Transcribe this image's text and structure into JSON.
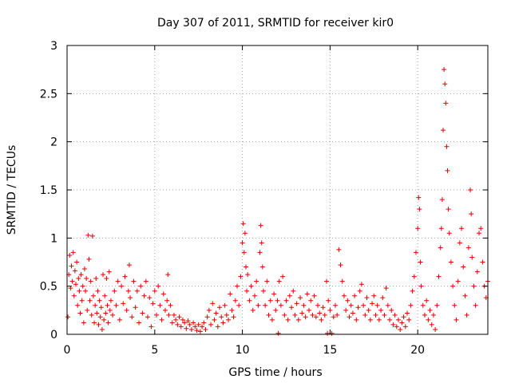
{
  "chart_data": {
    "type": "scatter",
    "title": "Day 307 of 2011, SRMTID for receiver kir0",
    "xlabel": "GPS time / hours",
    "ylabel": "SRMTID / TECUs",
    "xlim": [
      0,
      24
    ],
    "ylim": [
      0,
      3
    ],
    "xticks": [
      "0",
      "5",
      "10",
      "15",
      "20"
    ],
    "yticks": [
      "0",
      "0.5",
      "1",
      "1.5",
      "2",
      "2.5",
      "3"
    ],
    "grid": true,
    "marker": "+",
    "series": [
      {
        "color": "#e00000",
        "points": [
          [
            0.05,
            0.18
          ],
          [
            0.1,
            0.62
          ],
          [
            0.15,
            0.82
          ],
          [
            0.2,
            0.48
          ],
          [
            0.25,
            0.71
          ],
          [
            0.3,
            0.55
          ],
          [
            0.35,
            0.85
          ],
          [
            0.4,
            0.4
          ],
          [
            0.45,
            0.66
          ],
          [
            0.5,
            0.52
          ],
          [
            0.55,
            0.75
          ],
          [
            0.6,
            0.3
          ],
          [
            0.65,
            0.58
          ],
          [
            0.7,
            0.45
          ],
          [
            0.75,
            0.22
          ],
          [
            0.8,
            0.62
          ],
          [
            0.85,
            0.35
          ],
          [
            0.9,
            0.5
          ],
          [
            0.95,
            0.12
          ],
          [
            1.0,
            0.68
          ],
          [
            1.05,
            0.45
          ],
          [
            1.1,
            0.58
          ],
          [
            1.15,
            0.25
          ],
          [
            1.2,
            1.03
          ],
          [
            1.25,
            0.78
          ],
          [
            1.3,
            0.35
          ],
          [
            1.35,
            0.55
          ],
          [
            1.4,
            0.2
          ],
          [
            1.45,
            1.02
          ],
          [
            1.5,
            0.4
          ],
          [
            1.55,
            0.12
          ],
          [
            1.6,
            0.3
          ],
          [
            1.65,
            0.58
          ],
          [
            1.7,
            0.22
          ],
          [
            1.75,
            0.45
          ],
          [
            1.8,
            0.1
          ],
          [
            1.85,
            0.35
          ],
          [
            1.9,
            0.18
          ],
          [
            1.95,
            0.28
          ],
          [
            2.0,
            0.05
          ],
          [
            2.05,
            0.62
          ],
          [
            2.1,
            0.15
          ],
          [
            2.15,
            0.4
          ],
          [
            2.2,
            0.22
          ],
          [
            2.25,
            0.58
          ],
          [
            2.3,
            0.3
          ],
          [
            2.35,
            0.12
          ],
          [
            2.4,
            0.65
          ],
          [
            2.45,
            0.25
          ],
          [
            2.5,
            0.35
          ],
          [
            2.6,
            0.2
          ],
          [
            2.7,
            0.45
          ],
          [
            2.8,
            0.3
          ],
          [
            2.9,
            0.55
          ],
          [
            3.0,
            0.15
          ],
          [
            3.1,
            0.5
          ],
          [
            3.2,
            0.32
          ],
          [
            3.3,
            0.6
          ],
          [
            3.4,
            0.25
          ],
          [
            3.5,
            0.45
          ],
          [
            3.55,
            0.72
          ],
          [
            3.6,
            0.38
          ],
          [
            3.7,
            0.18
          ],
          [
            3.8,
            0.55
          ],
          [
            3.9,
            0.28
          ],
          [
            4.0,
            0.45
          ],
          [
            4.1,
            0.12
          ],
          [
            4.2,
            0.5
          ],
          [
            4.3,
            0.22
          ],
          [
            4.4,
            0.4
          ],
          [
            4.5,
            0.55
          ],
          [
            4.6,
            0.18
          ],
          [
            4.7,
            0.38
          ],
          [
            4.8,
            0.08
          ],
          [
            4.9,
            0.32
          ],
          [
            5.0,
            0.45
          ],
          [
            5.1,
            0.2
          ],
          [
            5.2,
            0.5
          ],
          [
            5.3,
            0.3
          ],
          [
            5.4,
            0.15
          ],
          [
            5.5,
            0.42
          ],
          [
            5.6,
            0.25
          ],
          [
            5.7,
            0.35
          ],
          [
            5.75,
            0.62
          ],
          [
            5.8,
            0.2
          ],
          [
            5.9,
            0.3
          ],
          [
            6.0,
            0.12
          ],
          [
            6.1,
            0.2
          ],
          [
            6.2,
            0.15
          ],
          [
            6.3,
            0.1
          ],
          [
            6.4,
            0.18
          ],
          [
            6.5,
            0.08
          ],
          [
            6.6,
            0.15
          ],
          [
            6.7,
            0.12
          ],
          [
            6.8,
            0.06
          ],
          [
            6.9,
            0.14
          ],
          [
            7.0,
            0.1
          ],
          [
            7.1,
            0.05
          ],
          [
            7.2,
            0.12
          ],
          [
            7.3,
            0.08
          ],
          [
            7.4,
            0.04
          ],
          [
            7.5,
            0.1
          ],
          [
            7.6,
            0.03
          ],
          [
            7.7,
            0.08
          ],
          [
            7.8,
            0.12
          ],
          [
            7.9,
            0.05
          ],
          [
            8.0,
            0.18
          ],
          [
            8.1,
            0.25
          ],
          [
            8.2,
            0.1
          ],
          [
            8.3,
            0.32
          ],
          [
            8.4,
            0.15
          ],
          [
            8.5,
            0.22
          ],
          [
            8.6,
            0.08
          ],
          [
            8.7,
            0.28
          ],
          [
            8.8,
            0.18
          ],
          [
            8.9,
            0.12
          ],
          [
            9.0,
            0.3
          ],
          [
            9.1,
            0.2
          ],
          [
            9.2,
            0.15
          ],
          [
            9.3,
            0.42
          ],
          [
            9.4,
            0.25
          ],
          [
            9.5,
            0.18
          ],
          [
            9.6,
            0.35
          ],
          [
            9.7,
            0.5
          ],
          [
            9.8,
            0.3
          ],
          [
            9.9,
            0.6
          ],
          [
            10.0,
            0.95
          ],
          [
            10.05,
            1.15
          ],
          [
            10.1,
            0.85
          ],
          [
            10.15,
            1.05
          ],
          [
            10.2,
            0.7
          ],
          [
            10.25,
            0.45
          ],
          [
            10.3,
            0.62
          ],
          [
            10.4,
            0.35
          ],
          [
            10.5,
            0.5
          ],
          [
            10.6,
            0.25
          ],
          [
            10.7,
            0.4
          ],
          [
            10.8,
            0.55
          ],
          [
            10.9,
            0.3
          ],
          [
            11.0,
            0.85
          ],
          [
            11.05,
            1.13
          ],
          [
            11.1,
            0.95
          ],
          [
            11.15,
            0.7
          ],
          [
            11.2,
            0.45
          ],
          [
            11.3,
            0.3
          ],
          [
            11.4,
            0.55
          ],
          [
            11.5,
            0.2
          ],
          [
            11.6,
            0.35
          ],
          [
            11.7,
            0.15
          ],
          [
            11.8,
            0.42
          ],
          [
            11.9,
            0.25
          ],
          [
            12.0,
            0.35
          ],
          [
            12.05,
            0.01
          ],
          [
            12.1,
            0.55
          ],
          [
            12.2,
            0.3
          ],
          [
            12.3,
            0.6
          ],
          [
            12.4,
            0.2
          ],
          [
            12.5,
            0.35
          ],
          [
            12.6,
            0.15
          ],
          [
            12.7,
            0.4
          ],
          [
            12.8,
            0.28
          ],
          [
            12.9,
            0.45
          ],
          [
            13.0,
            0.2
          ],
          [
            13.1,
            0.32
          ],
          [
            13.2,
            0.15
          ],
          [
            13.3,
            0.38
          ],
          [
            13.4,
            0.22
          ],
          [
            13.5,
            0.3
          ],
          [
            13.6,
            0.18
          ],
          [
            13.7,
            0.42
          ],
          [
            13.8,
            0.25
          ],
          [
            13.9,
            0.35
          ],
          [
            14.0,
            0.2
          ],
          [
            14.1,
            0.4
          ],
          [
            14.2,
            0.18
          ],
          [
            14.3,
            0.3
          ],
          [
            14.4,
            0.22
          ],
          [
            14.5,
            0.15
          ],
          [
            14.6,
            0.28
          ],
          [
            14.7,
            0.2
          ],
          [
            14.8,
            0.55
          ],
          [
            14.85,
            0.01
          ],
          [
            14.9,
            0.35
          ],
          [
            15.0,
            0.25
          ],
          [
            15.1,
            0.01
          ],
          [
            15.2,
            0.18
          ],
          [
            15.3,
            0.3
          ],
          [
            15.4,
            0.2
          ],
          [
            15.5,
            0.88
          ],
          [
            15.6,
            0.72
          ],
          [
            15.7,
            0.55
          ],
          [
            15.8,
            0.4
          ],
          [
            15.9,
            0.25
          ],
          [
            16.0,
            0.35
          ],
          [
            16.1,
            0.18
          ],
          [
            16.2,
            0.3
          ],
          [
            16.3,
            0.22
          ],
          [
            16.4,
            0.4
          ],
          [
            16.5,
            0.15
          ],
          [
            16.6,
            0.28
          ],
          [
            16.7,
            0.45
          ],
          [
            16.8,
            0.52
          ],
          [
            16.9,
            0.3
          ],
          [
            17.0,
            0.2
          ],
          [
            17.1,
            0.38
          ],
          [
            17.2,
            0.25
          ],
          [
            17.3,
            0.15
          ],
          [
            17.4,
            0.32
          ],
          [
            17.5,
            0.4
          ],
          [
            17.6,
            0.2
          ],
          [
            17.7,
            0.3
          ],
          [
            17.8,
            0.15
          ],
          [
            17.9,
            0.25
          ],
          [
            18.0,
            0.38
          ],
          [
            18.1,
            0.2
          ],
          [
            18.2,
            0.48
          ],
          [
            18.3,
            0.3
          ],
          [
            18.4,
            0.15
          ],
          [
            18.5,
            0.25
          ],
          [
            18.6,
            0.1
          ],
          [
            18.7,
            0.2
          ],
          [
            18.8,
            0.08
          ],
          [
            18.9,
            0.15
          ],
          [
            19.0,
            0.05
          ],
          [
            19.1,
            0.12
          ],
          [
            19.2,
            0.18
          ],
          [
            19.3,
            0.08
          ],
          [
            19.4,
            0.22
          ],
          [
            19.5,
            0.15
          ],
          [
            19.6,
            0.3
          ],
          [
            19.7,
            0.45
          ],
          [
            19.8,
            0.6
          ],
          [
            19.9,
            0.85
          ],
          [
            20.0,
            1.1
          ],
          [
            20.05,
            1.42
          ],
          [
            20.1,
            1.3
          ],
          [
            20.15,
            0.75
          ],
          [
            20.2,
            0.5
          ],
          [
            20.3,
            0.3
          ],
          [
            20.4,
            0.2
          ],
          [
            20.5,
            0.35
          ],
          [
            20.6,
            0.15
          ],
          [
            20.7,
            0.25
          ],
          [
            20.8,
            0.1
          ],
          [
            20.9,
            0.2
          ],
          [
            21.0,
            0.05
          ],
          [
            21.1,
            0.3
          ],
          [
            21.2,
            0.6
          ],
          [
            21.3,
            0.9
          ],
          [
            21.35,
            1.1
          ],
          [
            21.4,
            1.4
          ],
          [
            21.45,
            2.12
          ],
          [
            21.5,
            2.75
          ],
          [
            21.55,
            2.6
          ],
          [
            21.6,
            2.4
          ],
          [
            21.65,
            1.95
          ],
          [
            21.7,
            1.7
          ],
          [
            21.75,
            1.3
          ],
          [
            21.8,
            1.05
          ],
          [
            21.9,
            0.75
          ],
          [
            22.0,
            0.5
          ],
          [
            22.1,
            0.3
          ],
          [
            22.2,
            0.15
          ],
          [
            22.3,
            0.55
          ],
          [
            22.4,
            0.95
          ],
          [
            22.5,
            1.1
          ],
          [
            22.6,
            0.7
          ],
          [
            22.7,
            0.4
          ],
          [
            22.8,
            0.2
          ],
          [
            22.9,
            0.9
          ],
          [
            23.0,
            1.5
          ],
          [
            23.05,
            1.25
          ],
          [
            23.1,
            0.8
          ],
          [
            23.2,
            0.5
          ],
          [
            23.3,
            0.3
          ],
          [
            23.4,
            0.65
          ],
          [
            23.5,
            1.05
          ],
          [
            23.6,
            1.1
          ],
          [
            23.7,
            0.75
          ],
          [
            23.8,
            0.5
          ],
          [
            23.9,
            0.38
          ],
          [
            24.0,
            0.55
          ]
        ]
      }
    ]
  }
}
